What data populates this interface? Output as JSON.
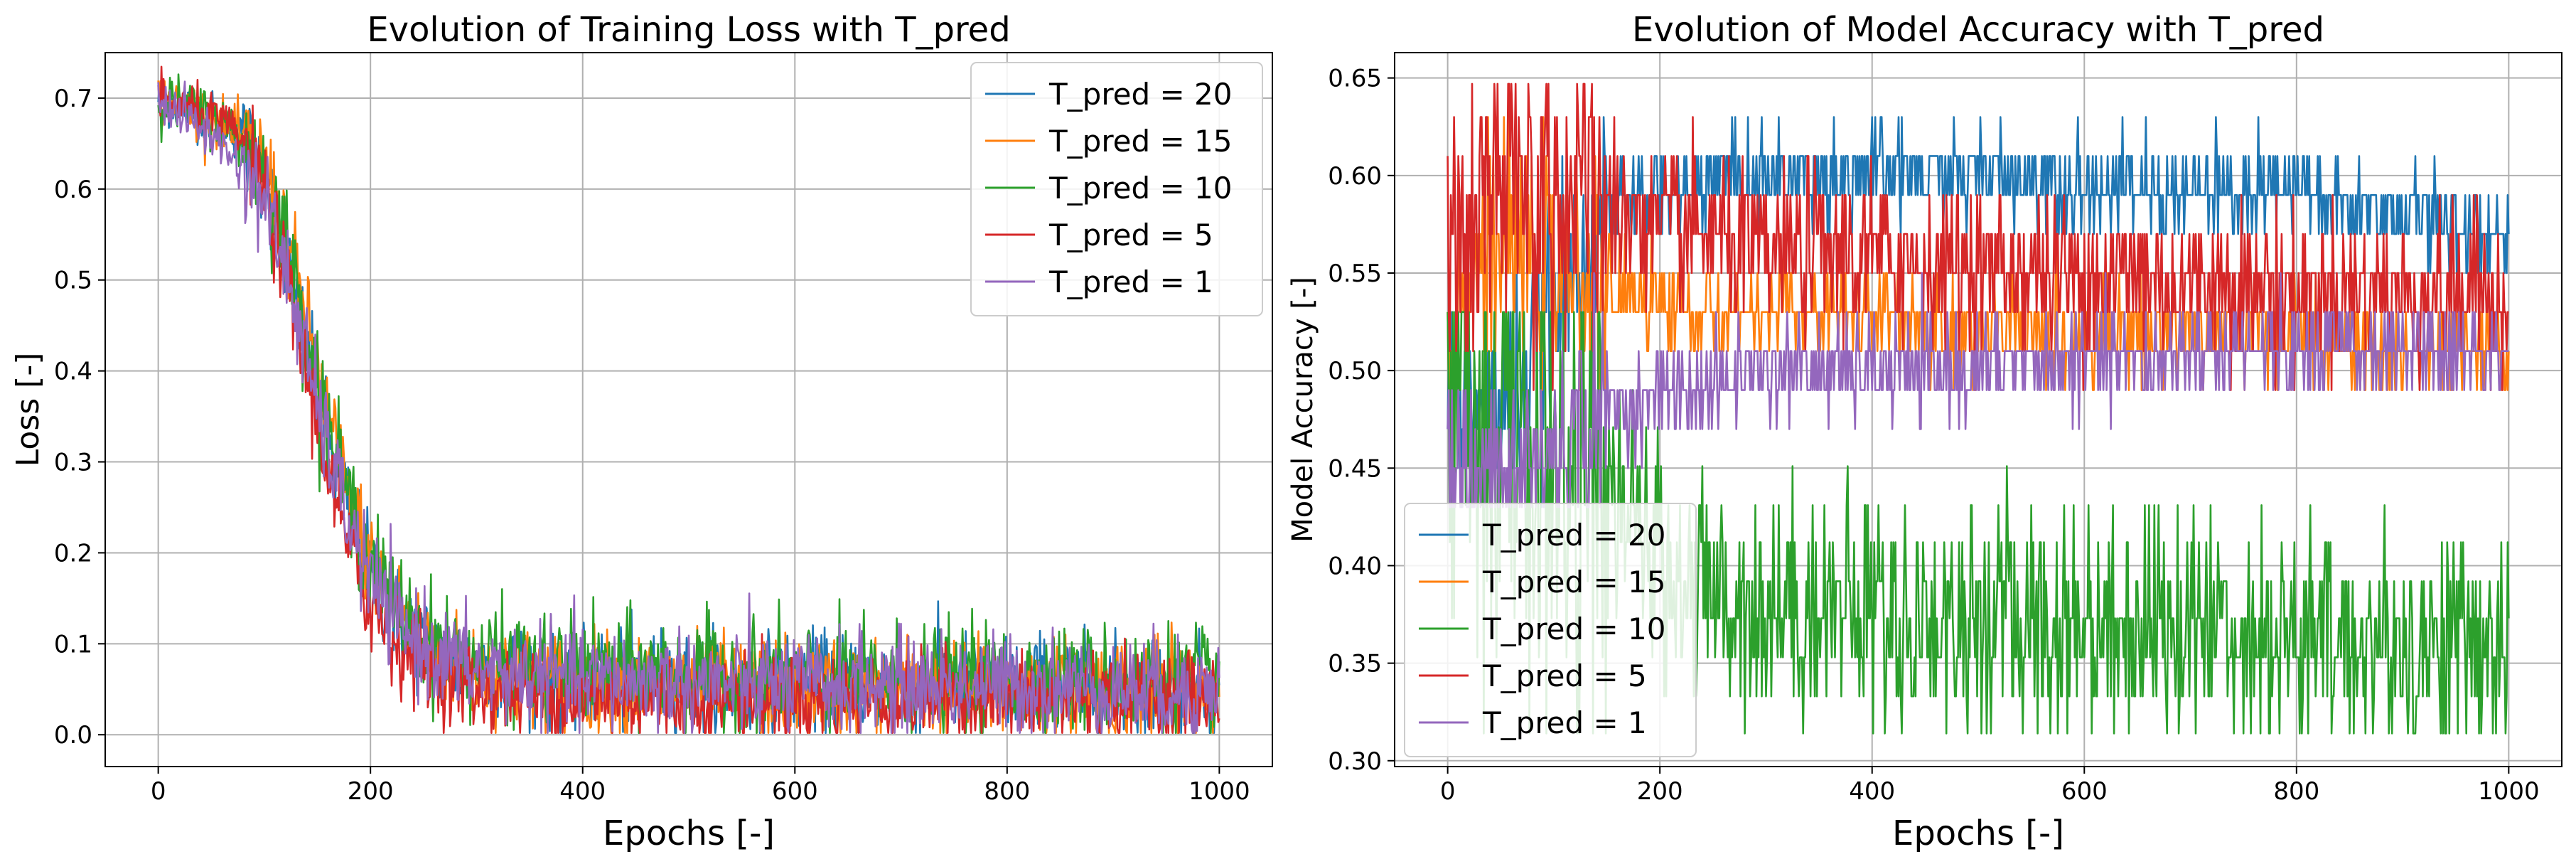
{
  "chart_data": [
    {
      "type": "line",
      "title": "Evolution of Training Loss with T_pred",
      "xlabel": "Epochs [-]",
      "ylabel": "Loss [-]",
      "xlim": [
        -50,
        1050
      ],
      "ylim": [
        -0.035,
        0.75
      ],
      "xticks": [
        0,
        200,
        400,
        600,
        800,
        1000
      ],
      "xtick_labels": [
        "0",
        "200",
        "400",
        "600",
        "800",
        "1000"
      ],
      "yticks": [
        0.0,
        0.1,
        0.2,
        0.3,
        0.4,
        0.5,
        0.6,
        0.7
      ],
      "ytick_labels": [
        "0.0",
        "0.1",
        "0.2",
        "0.3",
        "0.4",
        "0.5",
        "0.6",
        "0.7"
      ],
      "grid": true,
      "legend": "top-right",
      "x": [
        0,
        25,
        50,
        75,
        100,
        125,
        150,
        175,
        200,
        225,
        250,
        275,
        300,
        350,
        400,
        450,
        500,
        550,
        600,
        650,
        700,
        750,
        800,
        850,
        900,
        950,
        1000
      ],
      "series": [
        {
          "name": "T_pred = 20",
          "color": "#1f77b4",
          "values": [
            0.7,
            0.69,
            0.68,
            0.66,
            0.62,
            0.5,
            0.37,
            0.26,
            0.18,
            0.13,
            0.1,
            0.08,
            0.07,
            0.065,
            0.06,
            0.06,
            0.06,
            0.055,
            0.055,
            0.055,
            0.055,
            0.055,
            0.055,
            0.055,
            0.05,
            0.05,
            0.05
          ],
          "noise": 0.028
        },
        {
          "name": "T_pred = 15",
          "color": "#ff7f0e",
          "values": [
            0.7,
            0.69,
            0.68,
            0.66,
            0.63,
            0.53,
            0.4,
            0.28,
            0.19,
            0.14,
            0.1,
            0.08,
            0.07,
            0.06,
            0.055,
            0.055,
            0.055,
            0.05,
            0.05,
            0.05,
            0.05,
            0.05,
            0.05,
            0.05,
            0.05,
            0.05,
            0.05
          ],
          "noise": 0.028
        },
        {
          "name": "T_pred = 10",
          "color": "#2ca02c",
          "values": [
            0.7,
            0.69,
            0.68,
            0.66,
            0.62,
            0.52,
            0.39,
            0.27,
            0.19,
            0.14,
            0.11,
            0.09,
            0.08,
            0.075,
            0.07,
            0.07,
            0.065,
            0.065,
            0.06,
            0.06,
            0.06,
            0.06,
            0.06,
            0.06,
            0.06,
            0.06,
            0.06
          ],
          "noise": 0.03
        },
        {
          "name": "T_pred = 5",
          "color": "#d62728",
          "values": [
            0.7,
            0.69,
            0.68,
            0.66,
            0.6,
            0.48,
            0.34,
            0.22,
            0.14,
            0.1,
            0.08,
            0.06,
            0.05,
            0.045,
            0.04,
            0.04,
            0.04,
            0.04,
            0.04,
            0.04,
            0.04,
            0.04,
            0.04,
            0.04,
            0.04,
            0.04,
            0.04
          ],
          "noise": 0.025
        },
        {
          "name": "T_pred = 1",
          "color": "#9467bd",
          "values": [
            0.7,
            0.68,
            0.66,
            0.63,
            0.59,
            0.49,
            0.36,
            0.25,
            0.17,
            0.12,
            0.1,
            0.08,
            0.07,
            0.065,
            0.06,
            0.06,
            0.06,
            0.055,
            0.055,
            0.055,
            0.055,
            0.055,
            0.055,
            0.055,
            0.05,
            0.05,
            0.05
          ],
          "noise": 0.028
        }
      ]
    },
    {
      "type": "line",
      "title": "Evolution of Model Accuracy with T_pred",
      "xlabel": "Epochs [-]",
      "ylabel": "Model Accuracy [-]",
      "xlim": [
        -50,
        1050
      ],
      "ylim": [
        0.297,
        0.663
      ],
      "xticks": [
        0,
        200,
        400,
        600,
        800,
        1000
      ],
      "xtick_labels": [
        "0",
        "200",
        "400",
        "600",
        "800",
        "1000"
      ],
      "yticks": [
        0.3,
        0.35,
        0.4,
        0.45,
        0.5,
        0.55,
        0.6,
        0.65
      ],
      "ytick_labels": [
        "0.30",
        "0.35",
        "0.40",
        "0.45",
        "0.50",
        "0.55",
        "0.60",
        "0.65"
      ],
      "grid": true,
      "legend": "bottom-left",
      "x": [
        0,
        25,
        50,
        75,
        100,
        125,
        150,
        175,
        200,
        225,
        250,
        275,
        300,
        350,
        400,
        450,
        500,
        550,
        600,
        650,
        700,
        750,
        800,
        850,
        900,
        950,
        1000
      ],
      "series": [
        {
          "name": "T_pred = 20",
          "color": "#1f77b4",
          "values": [
            0.5,
            0.47,
            0.48,
            0.5,
            0.53,
            0.56,
            0.58,
            0.59,
            0.59,
            0.59,
            0.6,
            0.6,
            0.6,
            0.6,
            0.6,
            0.6,
            0.6,
            0.6,
            0.595,
            0.595,
            0.59,
            0.59,
            0.59,
            0.585,
            0.58,
            0.575,
            0.57
          ],
          "noise": 0.012,
          "levels": [
            0.43,
            0.45,
            0.47,
            0.49,
            0.51,
            0.53,
            0.55,
            0.57,
            0.59,
            0.61,
            0.63
          ]
        },
        {
          "name": "T_pred = 15",
          "color": "#ff7f0e",
          "values": [
            0.52,
            0.55,
            0.56,
            0.56,
            0.55,
            0.55,
            0.54,
            0.54,
            0.54,
            0.53,
            0.53,
            0.53,
            0.53,
            0.53,
            0.53,
            0.52,
            0.52,
            0.52,
            0.52,
            0.52,
            0.52,
            0.52,
            0.52,
            0.51,
            0.51,
            0.51,
            0.51
          ],
          "noise": 0.012,
          "levels": [
            0.47,
            0.49,
            0.51,
            0.53,
            0.55,
            0.57,
            0.59,
            0.61,
            0.63
          ]
        },
        {
          "name": "T_pred = 10",
          "color": "#2ca02c",
          "values": [
            0.5,
            0.48,
            0.47,
            0.46,
            0.45,
            0.44,
            0.43,
            0.42,
            0.4,
            0.39,
            0.38,
            0.38,
            0.38,
            0.38,
            0.38,
            0.37,
            0.37,
            0.37,
            0.37,
            0.37,
            0.37,
            0.37,
            0.36,
            0.36,
            0.36,
            0.36,
            0.36
          ],
          "noise": 0.03,
          "levels": [
            0.314,
            0.333,
            0.353,
            0.373,
            0.392,
            0.412,
            0.431,
            0.451,
            0.471,
            0.49,
            0.51,
            0.53
          ]
        },
        {
          "name": "T_pred = 5",
          "color": "#d62728",
          "values": [
            0.55,
            0.58,
            0.59,
            0.59,
            0.59,
            0.59,
            0.58,
            0.58,
            0.57,
            0.57,
            0.57,
            0.56,
            0.56,
            0.56,
            0.56,
            0.555,
            0.555,
            0.55,
            0.55,
            0.55,
            0.545,
            0.545,
            0.54,
            0.54,
            0.54,
            0.54,
            0.54
          ],
          "noise": 0.02,
          "levels": [
            0.49,
            0.51,
            0.53,
            0.55,
            0.57,
            0.59,
            0.61,
            0.63,
            0.647
          ]
        },
        {
          "name": "T_pred = 1",
          "color": "#9467bd",
          "values": [
            0.45,
            0.44,
            0.44,
            0.45,
            0.46,
            0.47,
            0.48,
            0.48,
            0.49,
            0.49,
            0.49,
            0.5,
            0.5,
            0.5,
            0.5,
            0.5,
            0.5,
            0.505,
            0.505,
            0.505,
            0.51,
            0.51,
            0.51,
            0.51,
            0.51,
            0.51,
            0.51
          ],
          "noise": 0.012,
          "levels": [
            0.43,
            0.45,
            0.47,
            0.49,
            0.51,
            0.53,
            0.55
          ]
        }
      ]
    }
  ]
}
